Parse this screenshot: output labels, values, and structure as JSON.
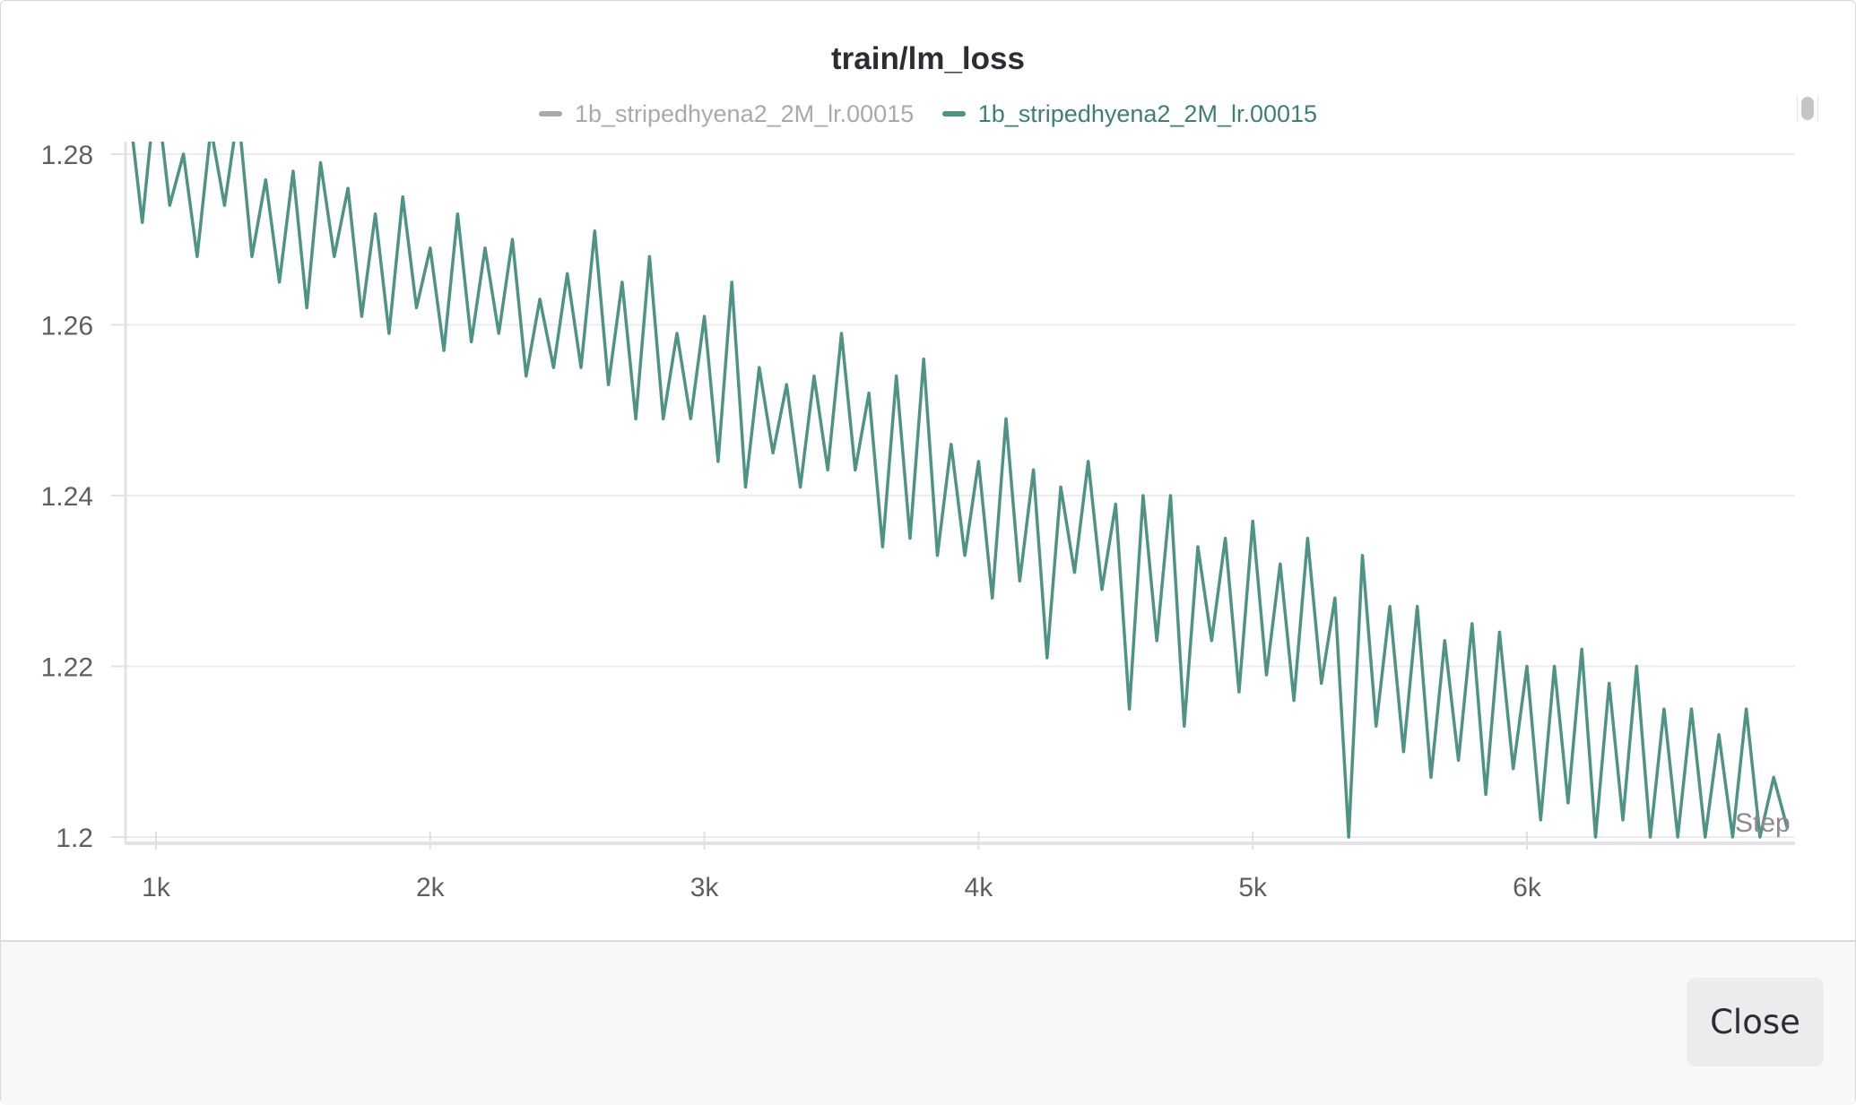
{
  "dialog": {
    "close_label": "Close"
  },
  "chart_data": {
    "type": "line",
    "title": "train/lm_loss",
    "xlabel": "Step",
    "ylabel": "",
    "xlim": [
      890,
      6975
    ],
    "ylim": [
      1.2,
      1.2813
    ],
    "grid": true,
    "legend_position": "top",
    "x_ticks": [
      1000,
      2000,
      3000,
      4000,
      5000,
      6000
    ],
    "x_tick_labels": [
      "1k",
      "2k",
      "3k",
      "4k",
      "5k",
      "6k"
    ],
    "y_ticks": [
      1.2,
      1.22,
      1.24,
      1.26,
      1.28
    ],
    "y_tick_labels": [
      "1.2",
      "1.22",
      "1.24",
      "1.26",
      "1.28"
    ],
    "legend": [
      {
        "name": "1b_stripedhyena2_2M_lr.00015",
        "color": "#a9a9a9",
        "muted": true
      },
      {
        "name": "1b_stripedhyena2_2M_lr.00015",
        "color": "#4f9385",
        "muted": false
      }
    ],
    "series": [
      {
        "name": "1b_stripedhyena2_2M_lr.00015",
        "color": "#4f9385",
        "x": [
          900,
          950,
          1000,
          1050,
          1100,
          1150,
          1200,
          1250,
          1300,
          1350,
          1400,
          1450,
          1500,
          1550,
          1600,
          1650,
          1700,
          1750,
          1800,
          1850,
          1900,
          1950,
          2000,
          2050,
          2100,
          2150,
          2200,
          2250,
          2300,
          2350,
          2400,
          2450,
          2500,
          2550,
          2600,
          2650,
          2700,
          2750,
          2800,
          2850,
          2900,
          2950,
          3000,
          3050,
          3100,
          3150,
          3200,
          3250,
          3300,
          3350,
          3400,
          3450,
          3500,
          3550,
          3600,
          3650,
          3700,
          3750,
          3800,
          3850,
          3900,
          3950,
          4000,
          4050,
          4100,
          4150,
          4200,
          4250,
          4300,
          4350,
          4400,
          4450,
          4500,
          4550,
          4600,
          4650,
          4700,
          4750,
          4800,
          4850,
          4900,
          4950,
          5000,
          5050,
          5100,
          5150,
          5200,
          5250,
          5300,
          5350,
          5400,
          5450,
          5500,
          5550,
          5600,
          5650,
          5700,
          5750,
          5800,
          5850,
          5900,
          5950,
          6000,
          6050,
          6100,
          6150,
          6200,
          6250,
          6300,
          6350,
          6400,
          6450,
          6500,
          6550,
          6600,
          6650,
          6700,
          6750,
          6800,
          6850,
          6900,
          6950
        ],
        "y": [
          1.286,
          1.272,
          1.288,
          1.274,
          1.28,
          1.268,
          1.283,
          1.274,
          1.285,
          1.268,
          1.277,
          1.265,
          1.278,
          1.262,
          1.279,
          1.268,
          1.276,
          1.261,
          1.273,
          1.259,
          1.275,
          1.262,
          1.269,
          1.257,
          1.273,
          1.258,
          1.269,
          1.259,
          1.27,
          1.254,
          1.263,
          1.255,
          1.266,
          1.255,
          1.271,
          1.253,
          1.265,
          1.249,
          1.268,
          1.249,
          1.259,
          1.249,
          1.261,
          1.244,
          1.265,
          1.241,
          1.255,
          1.245,
          1.253,
          1.241,
          1.254,
          1.243,
          1.259,
          1.243,
          1.252,
          1.234,
          1.254,
          1.235,
          1.256,
          1.233,
          1.246,
          1.233,
          1.244,
          1.228,
          1.249,
          1.23,
          1.243,
          1.221,
          1.241,
          1.231,
          1.244,
          1.229,
          1.239,
          1.215,
          1.24,
          1.223,
          1.24,
          1.213,
          1.234,
          1.223,
          1.235,
          1.217,
          1.237,
          1.219,
          1.232,
          1.216,
          1.235,
          1.218,
          1.228,
          1.2,
          1.233,
          1.213,
          1.227,
          1.21,
          1.227,
          1.207,
          1.223,
          1.209,
          1.225,
          1.205,
          1.224,
          1.208,
          1.22,
          1.202,
          1.22,
          1.204,
          1.222,
          1.2,
          1.218,
          1.202,
          1.22,
          1.2,
          1.215,
          1.2,
          1.215,
          1.2,
          1.212,
          1.2,
          1.215,
          1.2,
          1.207,
          1.201
        ]
      }
    ]
  }
}
